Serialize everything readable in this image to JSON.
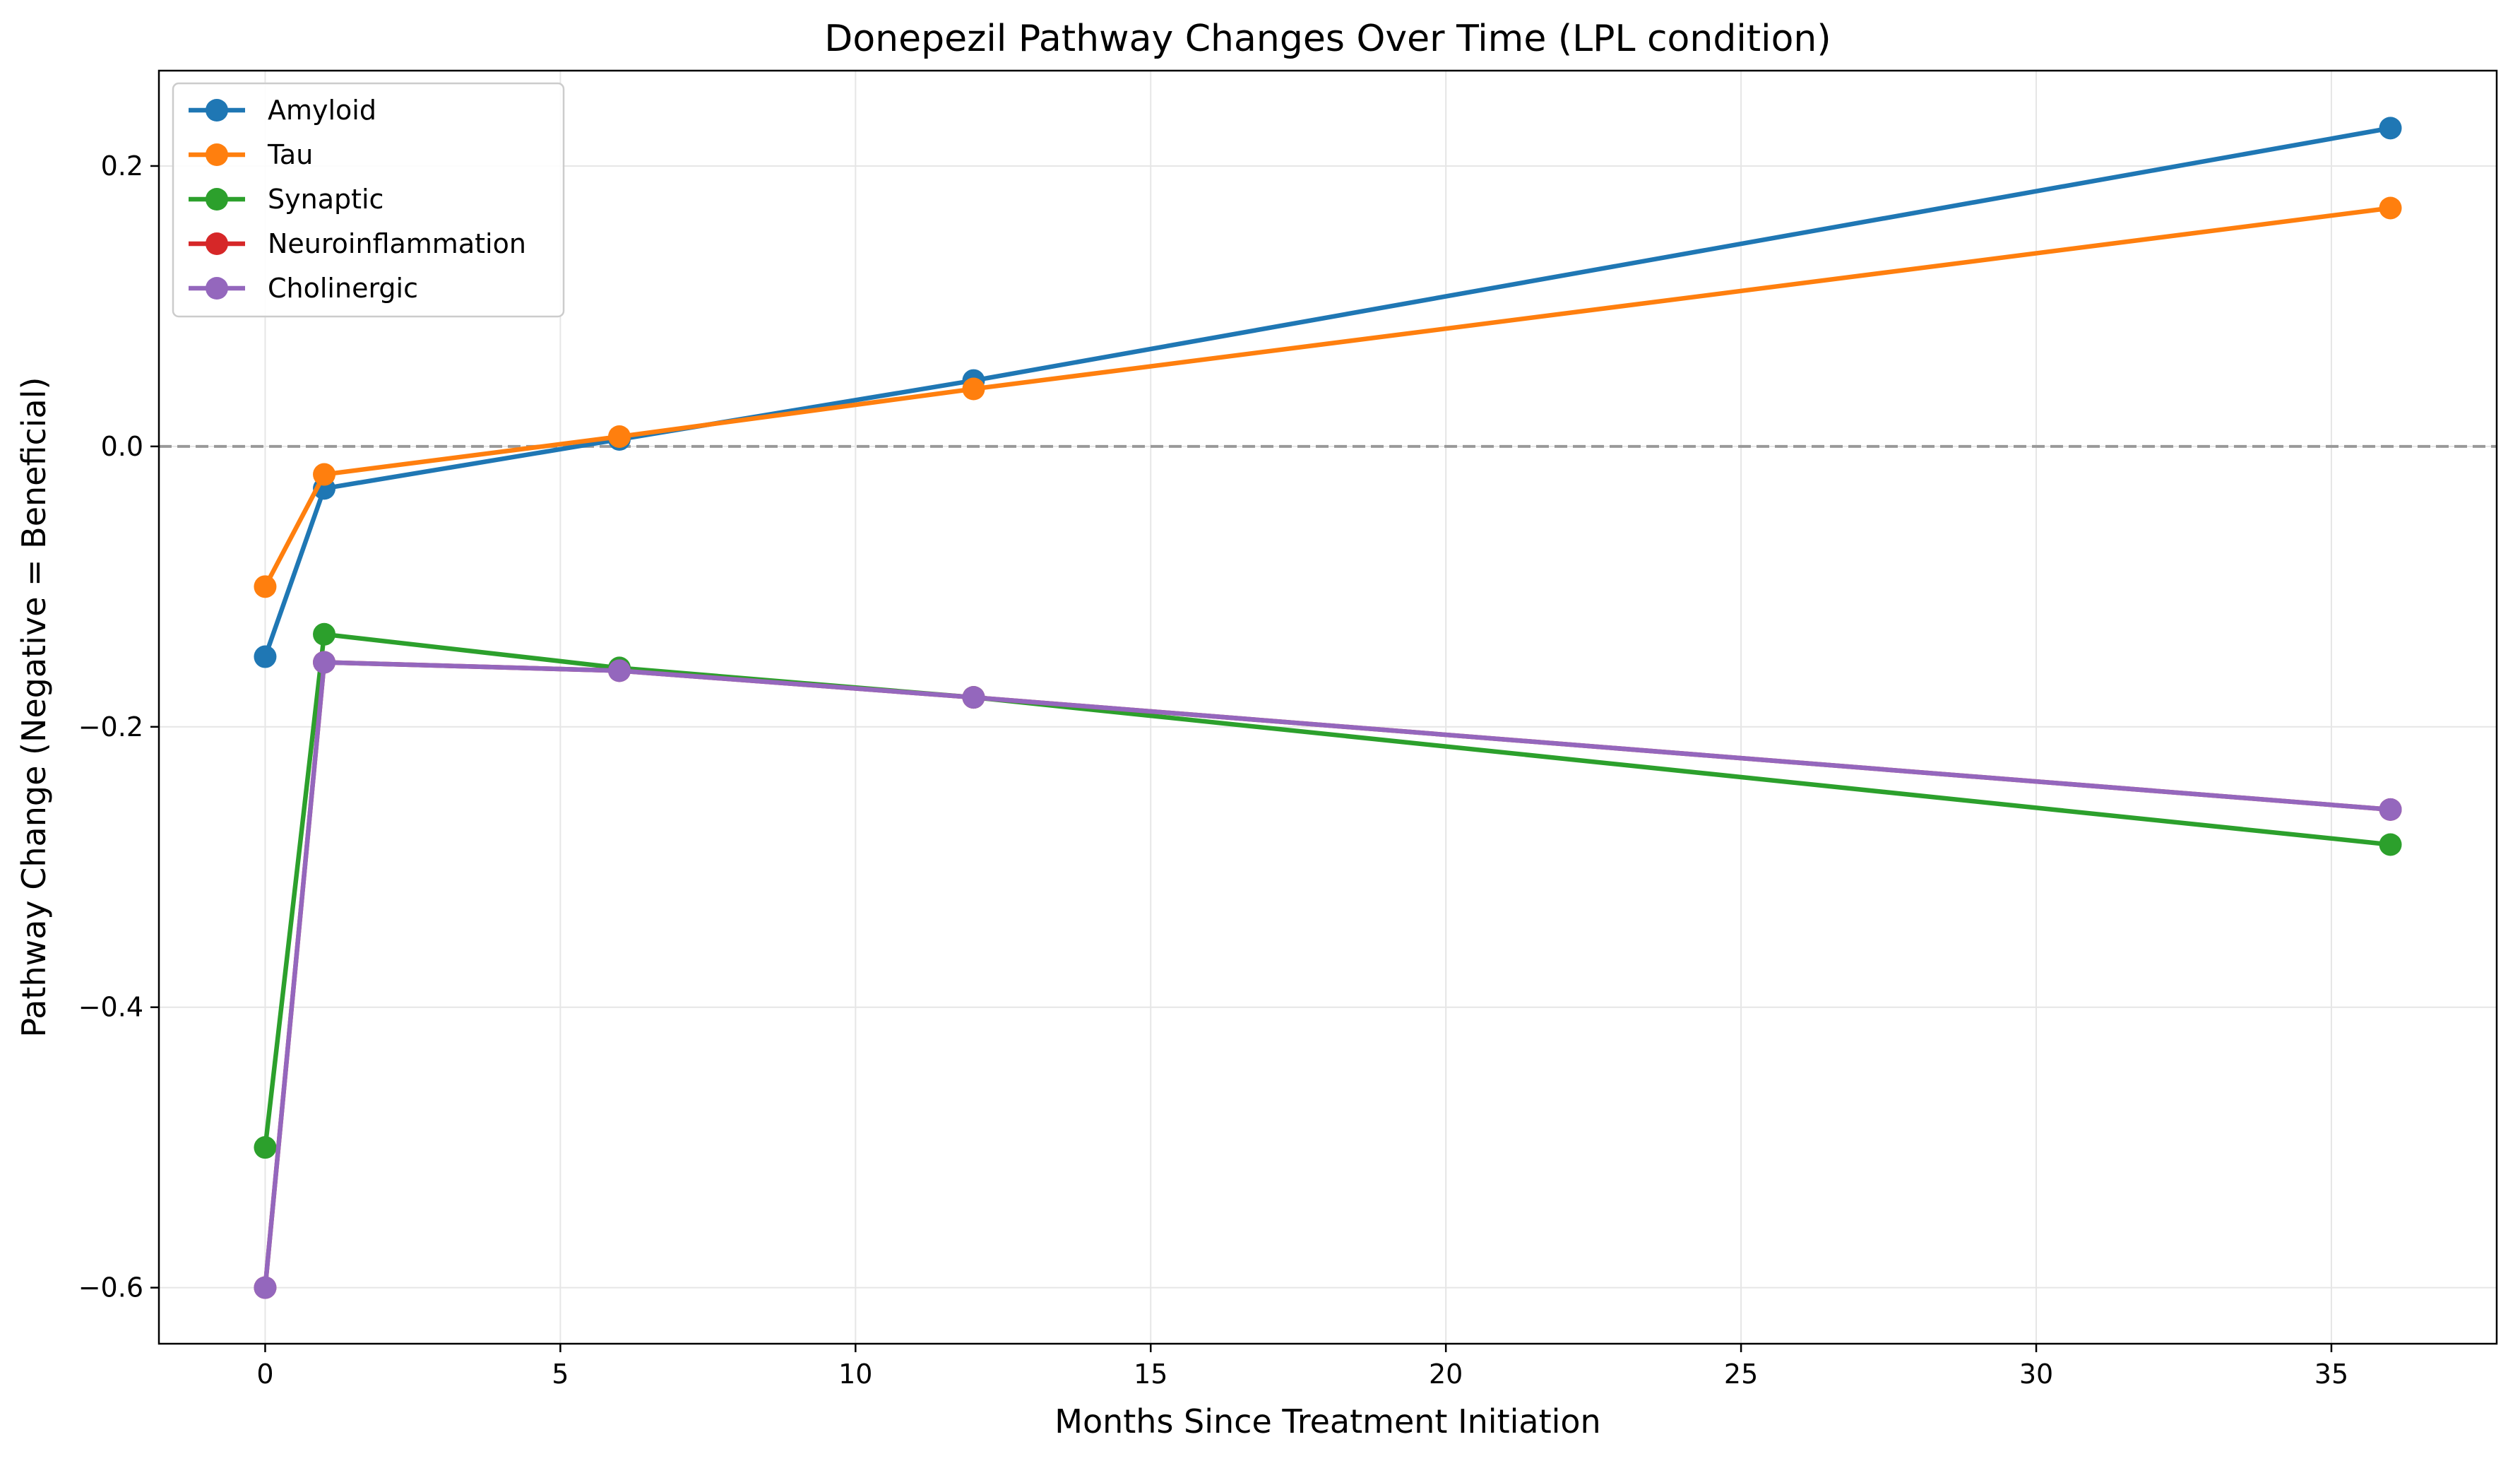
{
  "chart_data": {
    "type": "line",
    "title": "Donepezil Pathway Changes Over Time (LPL condition)",
    "xlabel": "Months Since Treatment Initiation",
    "ylabel": "Pathway Change (Negative = Beneficial)",
    "xlim": [
      -1.8,
      37.8
    ],
    "ylim": [
      -0.64,
      0.268
    ],
    "xticks": [
      0,
      5,
      10,
      15,
      20,
      25,
      30,
      35
    ],
    "yticks": [
      -0.6,
      -0.4,
      -0.2,
      0.0,
      0.2
    ],
    "ytick_labels": [
      "−0.6",
      "−0.4",
      "−0.2",
      "0.0",
      "0.2"
    ],
    "grid": true,
    "reference_line": {
      "y": 0,
      "style": "dashed",
      "color": "#999999"
    },
    "legend_position": "upper-left",
    "x": [
      0,
      1,
      6,
      12,
      36
    ],
    "series": [
      {
        "name": "Amyloid",
        "color": "#1f77b4",
        "values": [
          -0.15,
          -0.03,
          0.005,
          0.047,
          0.227
        ]
      },
      {
        "name": "Tau",
        "color": "#ff7f0e",
        "values": [
          -0.1,
          -0.02,
          0.007,
          0.041,
          0.17
        ]
      },
      {
        "name": "Synaptic",
        "color": "#2ca02c",
        "values": [
          -0.5,
          -0.134,
          -0.158,
          -0.179,
          -0.284
        ]
      },
      {
        "name": "Neuroinflammation",
        "color": "#d62728",
        "values": [
          -0.6,
          -0.154,
          -0.16,
          -0.179,
          -0.259
        ]
      },
      {
        "name": "Cholinergic",
        "color": "#9467bd",
        "values": [
          -0.6,
          -0.154,
          -0.16,
          -0.179,
          -0.259
        ]
      }
    ]
  }
}
